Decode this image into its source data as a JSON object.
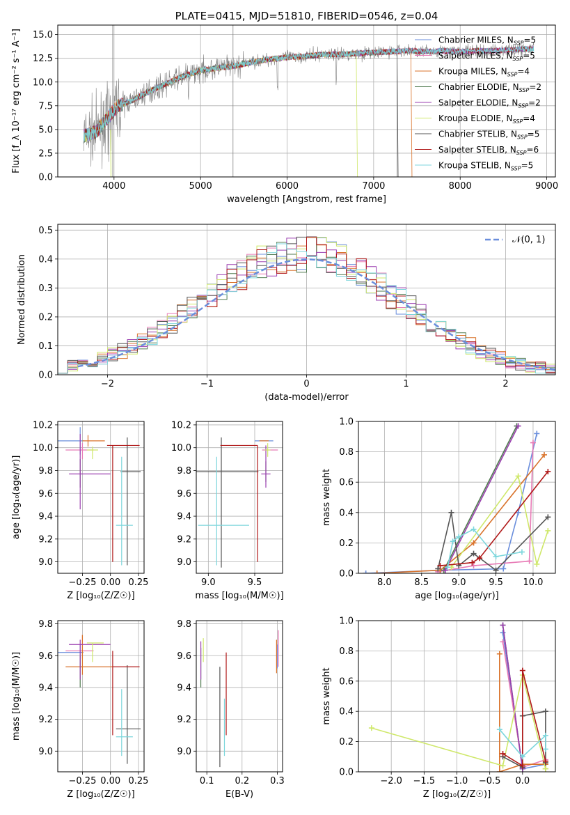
{
  "figure": {
    "title": "PLATE=0415, MJD=51810, FIBERID=0546, z=0.04"
  },
  "colors": {
    "chabrier_miles": "#6a8edc",
    "salpeter_miles": "#e87bb6",
    "kroupa_miles": "#d9732b",
    "chabrier_elodie": "#4f7a4f",
    "salpeter_elodie": "#9b3fb0",
    "kroupa_elodie": "#cfe86a",
    "chabrier_stelib": "#555555",
    "salpeter_stelib": "#b01818",
    "kroupa_stelib": "#7dd6dc",
    "gaussian": "#6a8edc",
    "spectrum_data": "#808080"
  },
  "chart_data": [
    {
      "id": "spectrum",
      "type": "line",
      "title": "PLATE=0415, MJD=51810, FIBERID=0546, z=0.04",
      "xlabel": "wavelength [Angstrom, rest frame]",
      "ylabel": "Flux [f_λ 10⁻¹⁷ erg cm⁻² s⁻¹ A⁻¹]",
      "xlim": [
        3350,
        9100
      ],
      "ylim": [
        0,
        16
      ],
      "xticks": [
        "4000",
        "5000",
        "6000",
        "7000",
        "8000",
        "9000"
      ],
      "yticks": [
        "0.0",
        "2.5",
        "5.0",
        "7.5",
        "10.0",
        "12.5",
        "15.0"
      ],
      "legend_position": "top-right",
      "legend": [
        {
          "text": "Chabrier MILES, N",
          "sub": "SSP",
          "tail": "=5",
          "color": "#6a8edc"
        },
        {
          "text": "Salpeter MILES, N",
          "sub": "SSP",
          "tail": "=5",
          "color": "#e87bb6"
        },
        {
          "text": "Kroupa MILES, N",
          "sub": "SSP",
          "tail": "=4",
          "color": "#d9732b"
        },
        {
          "text": "Chabrier ELODIE, N",
          "sub": "SSP",
          "tail": "=2",
          "color": "#4f7a4f"
        },
        {
          "text": "Salpeter ELODIE, N",
          "sub": "SSP",
          "tail": "=2",
          "color": "#9b3fb0"
        },
        {
          "text": "Kroupa ELODIE, N",
          "sub": "SSP",
          "tail": "=4",
          "color": "#cfe86a"
        },
        {
          "text": "Chabrier STELIB, N",
          "sub": "SSP",
          "tail": "=5",
          "color": "#555555"
        },
        {
          "text": "Salpeter STELIB, N",
          "sub": "SSP",
          "tail": "=6",
          "color": "#b01818"
        },
        {
          "text": "Kroupa STELIB, N",
          "sub": "SSP",
          "tail": "=5",
          "color": "#7dd6dc"
        }
      ],
      "continuum": {
        "x": [
          3650,
          3800,
          3950,
          4050,
          4200,
          4400,
          4600,
          4800,
          5000,
          5200,
          5400,
          5600,
          5800,
          6000,
          6200,
          6400,
          6600,
          6800,
          7000,
          7200,
          7400,
          7600,
          7800,
          8000,
          8200,
          8400,
          8600,
          8850
        ],
        "y": [
          4.3,
          4.8,
          6.5,
          7.5,
          8.0,
          9.0,
          9.8,
          10.6,
          11.2,
          11.5,
          11.7,
          12.1,
          12.4,
          12.6,
          12.7,
          12.9,
          12.9,
          13.0,
          13.1,
          13.2,
          13.3,
          13.2,
          13.3,
          13.2,
          13.3,
          13.3,
          13.4,
          13.5
        ]
      },
      "model_cutoffs": [
        {
          "series": "Kroupa ELODIE",
          "x": 6800,
          "color": "#cfe86a"
        },
        {
          "series": "Chabrier STELIB",
          "x": 7270,
          "color": "#555555"
        },
        {
          "series": "Kroupa MILES",
          "x": 7430,
          "color": "#d9732b"
        }
      ]
    },
    {
      "id": "residuals",
      "type": "bar",
      "xlabel": "(data-model)/error",
      "ylabel": "Normed distribution",
      "xlim": [
        -2.5,
        2.5
      ],
      "ylim": [
        0,
        0.52
      ],
      "xticks": [
        "−2",
        "−1",
        "0",
        "1",
        "2"
      ],
      "yticks": [
        "0.0",
        "0.1",
        "0.2",
        "0.3",
        "0.4",
        "0.5"
      ],
      "legend_position": "top-right",
      "legend": [
        {
          "text": "𝒩(0, 1)",
          "color": "#6a8edc"
        }
      ],
      "bin_width": 0.1,
      "bin_start": -2.5
    },
    {
      "id": "age-vs-Z",
      "type": "scatter",
      "xlabel": "Z [log₁₀(Z/Z☉)]",
      "ylabel": "age  [log₁₀(age/yr)]",
      "xlim": [
        -0.47,
        0.3
      ],
      "ylim": [
        8.9,
        10.23
      ],
      "xticks": [
        "−0.25",
        "0.00",
        "0.25"
      ],
      "yticks": [
        "9.0",
        "9.2",
        "9.4",
        "9.6",
        "9.8",
        "10.0",
        "10.2"
      ],
      "points": [
        {
          "x": -0.27,
          "y": 10.06,
          "xerr": [
            0.2,
            0.03
          ],
          "yerr": [
            0.12,
            0.12
          ],
          "color": "#6a8edc"
        },
        {
          "x": -0.25,
          "y": 9.98,
          "xerr": [
            0.15,
            0.1
          ],
          "yerr": [
            0.08,
            0.06
          ],
          "color": "#e87bb6"
        },
        {
          "x": -0.2,
          "y": 10.06,
          "xerr": [
            0.05,
            0.15
          ],
          "yerr": [
            0.05,
            0.05
          ],
          "color": "#d9732b"
        },
        {
          "x": -0.27,
          "y": 9.8,
          "xerr": [
            0.0,
            0.0
          ],
          "yerr": [
            0.15,
            0.1
          ],
          "color": "#4f7a4f"
        },
        {
          "x": -0.27,
          "y": 9.77,
          "xerr": [
            0.1,
            0.27
          ],
          "yerr": [
            0.31,
            0.35
          ],
          "color": "#9b3fb0"
        },
        {
          "x": -0.16,
          "y": 9.98,
          "xerr": [
            0.05,
            0.05
          ],
          "yerr": [
            0.08,
            0.03
          ],
          "color": "#cfe86a"
        },
        {
          "x": 0.15,
          "y": 9.79,
          "xerr": [
            0.06,
            0.12
          ],
          "yerr": [
            0.82,
            0.3
          ],
          "color": "#555555"
        },
        {
          "x": 0.02,
          "y": 10.02,
          "xerr": [
            0.05,
            0.24
          ],
          "yerr": [
            1.02,
            0.0
          ],
          "color": "#b01818"
        },
        {
          "x": 0.1,
          "y": 9.32,
          "xerr": [
            0.05,
            0.1
          ],
          "yerr": [
            0.35,
            0.6
          ],
          "color": "#7dd6dc"
        }
      ]
    },
    {
      "id": "age-vs-mass",
      "type": "scatter",
      "xlabel": "mass [log₁₀(M/M☉)]",
      "ylabel": "",
      "xlim": [
        8.87,
        9.8
      ],
      "ylim": [
        8.9,
        10.23
      ],
      "xticks": [
        "9.0",
        "9.5"
      ],
      "yticks": [
        "9.0",
        "9.2",
        "9.4",
        "9.6",
        "9.8",
        "10.0",
        "10.2"
      ],
      "points": [
        {
          "x": 9.6,
          "y": 10.06,
          "xerr": [
            0.1,
            0.1
          ],
          "yerr": [
            0.0,
            0.0
          ],
          "color": "#6a8edc"
        },
        {
          "x": 9.63,
          "y": 9.98,
          "xerr": [
            0.05,
            0.12
          ],
          "yerr": [
            0.0,
            0.0
          ],
          "color": "#e87bb6"
        },
        {
          "x": 9.6,
          "y": 10.06,
          "xerr": [
            0.05,
            0.05
          ],
          "yerr": [
            0.0,
            0.0
          ],
          "color": "#d9732b"
        },
        {
          "x": 9.62,
          "y": 9.8,
          "xerr": [
            0.0,
            0.0
          ],
          "yerr": [
            0.1,
            0.08
          ],
          "color": "#4f7a4f"
        },
        {
          "x": 9.62,
          "y": 9.77,
          "xerr": [
            0.05,
            0.05
          ],
          "yerr": [
            0.12,
            0.25
          ],
          "color": "#9b3fb0"
        },
        {
          "x": 9.64,
          "y": 9.98,
          "xerr": [
            0.03,
            0.03
          ],
          "yerr": [
            0.06,
            0.06
          ],
          "color": "#cfe86a"
        },
        {
          "x": 9.14,
          "y": 9.79,
          "xerr": [
            0.27,
            0.4
          ],
          "yerr": [
            0.84,
            0.3
          ],
          "color": "#555555"
        },
        {
          "x": 9.53,
          "y": 10.02,
          "xerr": [
            0.4,
            0.0
          ],
          "yerr": [
            1.02,
            0.0
          ],
          "color": "#b01818"
        },
        {
          "x": 9.09,
          "y": 9.32,
          "xerr": [
            0.2,
            0.35
          ],
          "yerr": [
            0.35,
            0.6
          ],
          "color": "#7dd6dc"
        }
      ]
    },
    {
      "id": "weight-vs-age",
      "type": "line",
      "xlabel": "age  [log₁₀(age/yr)]",
      "ylabel": "mass weight",
      "xlim": [
        7.65,
        10.3
      ],
      "ylim": [
        0,
        1.0
      ],
      "xticks": [
        "8.0",
        "8.5",
        "9.0",
        "9.5",
        "10.0"
      ],
      "yticks": [
        "0.0",
        "0.2",
        "0.4",
        "0.6",
        "0.8",
        "1.0"
      ],
      "series": [
        {
          "name": "Chabrier MILES",
          "color": "#6a8edc",
          "x": [
            7.75,
            8.75,
            9.6,
            9.8,
            10.05
          ],
          "y": [
            0.0,
            0.02,
            0.03,
            0.4,
            0.92
          ]
        },
        {
          "name": "Salpeter MILES",
          "color": "#e87bb6",
          "x": [
            8.72,
            9.2,
            9.95,
            10.0
          ],
          "y": [
            0.01,
            0.05,
            0.08,
            0.86
          ]
        },
        {
          "name": "Kroupa MILES",
          "color": "#d9732b",
          "x": [
            7.9,
            8.75,
            9.2,
            10.15
          ],
          "y": [
            0.0,
            0.02,
            0.2,
            0.78
          ]
        },
        {
          "name": "Chabrier ELODIE",
          "color": "#4f7a4f",
          "x": [
            8.8,
            9.78
          ],
          "y": [
            0.02,
            0.97
          ]
        },
        {
          "name": "Salpeter ELODIE",
          "color": "#9b3fb0",
          "x": [
            8.82,
            9.8
          ],
          "y": [
            0.02,
            0.97
          ]
        },
        {
          "name": "Kroupa ELODIE",
          "color": "#cfe86a",
          "x": [
            8.9,
            9.8,
            10.05,
            10.2
          ],
          "y": [
            0.04,
            0.64,
            0.06,
            0.28
          ]
        },
        {
          "name": "Chabrier STELIB",
          "color": "#555555",
          "x": [
            8.72,
            8.9,
            9.0,
            9.2,
            9.5,
            10.2
          ],
          "y": [
            0.03,
            0.4,
            0.05,
            0.13,
            0.02,
            0.37
          ]
        },
        {
          "name": "Salpeter STELIB",
          "color": "#b01818",
          "x": [
            8.75,
            9.18,
            9.28,
            10.2
          ],
          "y": [
            0.05,
            0.07,
            0.1,
            0.67
          ]
        },
        {
          "name": "Kroupa STELIB",
          "color": "#7dd6dc",
          "x": [
            8.85,
            8.92,
            9.0,
            9.2,
            9.5,
            9.85
          ],
          "y": [
            0.04,
            0.21,
            0.24,
            0.29,
            0.11,
            0.14
          ]
        }
      ]
    },
    {
      "id": "mass-vs-Z",
      "type": "scatter",
      "xlabel": "Z [log₁₀(Z/Z☉)]",
      "ylabel": "mass [log₁₀(M/M☉)]",
      "xlim": [
        -0.47,
        0.3
      ],
      "ylim": [
        8.87,
        9.82
      ],
      "xticks": [
        "−0.25",
        "0.00",
        "0.25"
      ],
      "yticks": [
        "9.0",
        "9.2",
        "9.4",
        "9.6",
        "9.8"
      ],
      "points": [
        {
          "x": -0.27,
          "y": 9.62,
          "xerr": [
            0.2,
            0.03
          ],
          "yerr": [
            0.1,
            0.05
          ],
          "color": "#6a8edc"
        },
        {
          "x": -0.25,
          "y": 9.63,
          "xerr": [
            0.15,
            0.1
          ],
          "yerr": [
            0.05,
            0.1
          ],
          "color": "#e87bb6"
        },
        {
          "x": -0.25,
          "y": 9.53,
          "xerr": [
            0.15,
            0.27
          ],
          "yerr": [
            0.05,
            0.2
          ],
          "color": "#d9732b"
        },
        {
          "x": -0.27,
          "y": 9.55,
          "xerr": [
            0.0,
            0.0
          ],
          "yerr": [
            0.15,
            0.05
          ],
          "color": "#4f7a4f"
        },
        {
          "x": -0.27,
          "y": 9.67,
          "xerr": [
            0.1,
            0.27
          ],
          "yerr": [
            0.22,
            0.03
          ],
          "color": "#9b3fb0"
        },
        {
          "x": -0.16,
          "y": 9.68,
          "xerr": [
            0.05,
            0.1
          ],
          "yerr": [
            0.12,
            0.0
          ],
          "color": "#cfe86a"
        },
        {
          "x": 0.15,
          "y": 9.14,
          "xerr": [
            0.1,
            0.12
          ],
          "yerr": [
            0.22,
            0.4
          ],
          "color": "#555555"
        },
        {
          "x": 0.02,
          "y": 9.53,
          "xerr": [
            0.0,
            0.24
          ],
          "yerr": [
            0.43,
            0.1
          ],
          "color": "#b01818"
        },
        {
          "x": 0.1,
          "y": 9.09,
          "xerr": [
            0.05,
            0.1
          ],
          "yerr": [
            0.12,
            0.3
          ],
          "color": "#7dd6dc"
        }
      ]
    },
    {
      "id": "mass-vs-EBV",
      "type": "scatter",
      "xlabel": "E(B-V)",
      "ylabel": "",
      "xlim": [
        0.07,
        0.315
      ],
      "ylim": [
        8.87,
        9.82
      ],
      "xticks": [
        "0.1",
        "0.2",
        "0.3"
      ],
      "yticks": [
        "9.0",
        "9.2",
        "9.4",
        "9.6",
        "9.8"
      ],
      "points": [
        {
          "x": 0.3,
          "y": 9.62,
          "yerr": [
            0.1,
            0.05
          ],
          "color": "#6a8edc"
        },
        {
          "x": 0.303,
          "y": 9.63,
          "yerr": [
            0.1,
            0.13
          ],
          "color": "#e87bb6"
        },
        {
          "x": 0.298,
          "y": 9.55,
          "yerr": [
            0.06,
            0.15
          ],
          "color": "#d9732b"
        },
        {
          "x": 0.083,
          "y": 9.55,
          "yerr": [
            0.15,
            0.1
          ],
          "color": "#4f7a4f"
        },
        {
          "x": 0.083,
          "y": 9.57,
          "yerr": [
            0.12,
            0.12
          ],
          "color": "#9b3fb0"
        },
        {
          "x": 0.09,
          "y": 9.63,
          "yerr": [
            0.07,
            0.08
          ],
          "color": "#cfe86a"
        },
        {
          "x": 0.137,
          "y": 9.2,
          "yerr": [
            0.3,
            0.33
          ],
          "color": "#555555"
        },
        {
          "x": 0.155,
          "y": 9.35,
          "yerr": [
            0.25,
            0.27
          ],
          "color": "#b01818"
        },
        {
          "x": 0.15,
          "y": 9.2,
          "yerr": [
            0.23,
            0.13
          ],
          "color": "#7dd6dc"
        }
      ]
    },
    {
      "id": "weight-vs-Z",
      "type": "line",
      "xlabel": "Z [log₁₀(Z/Z☉)]",
      "ylabel": "mass weight",
      "xlim": [
        -2.5,
        0.5
      ],
      "ylim": [
        0,
        1.0
      ],
      "xticks": [
        "−2.0",
        "−1.5",
        "−1.0",
        "−0.5",
        "0.0"
      ],
      "yticks": [
        "0.0",
        "0.2",
        "0.4",
        "0.6",
        "0.8",
        "1.0"
      ],
      "series": [
        {
          "name": "Chabrier MILES",
          "color": "#6a8edc",
          "x": [
            -0.3,
            0.0,
            0.35
          ],
          "y": [
            0.92,
            0.02,
            0.05
          ]
        },
        {
          "name": "Salpeter MILES",
          "color": "#e87bb6",
          "x": [
            -0.3,
            0.0,
            0.35
          ],
          "y": [
            0.86,
            0.03,
            0.08
          ]
        },
        {
          "name": "Kroupa MILES",
          "color": "#d9732b",
          "x": [
            -0.35,
            -0.35,
            0.0,
            0.35,
            0.35
          ],
          "y": [
            0.78,
            0.0,
            0.05,
            0.05,
            0.02
          ]
        },
        {
          "name": "Chabrier ELODIE",
          "color": "#4f7a4f",
          "x": [
            -0.3,
            0.0
          ],
          "y": [
            0.97,
            0.02
          ]
        },
        {
          "name": "Salpeter ELODIE",
          "color": "#9b3fb0",
          "x": [
            -0.3,
            0.0
          ],
          "y": [
            0.97,
            0.02
          ]
        },
        {
          "name": "Kroupa ELODIE",
          "color": "#cfe86a",
          "x": [
            -2.3,
            -0.3,
            0.0,
            0.35
          ],
          "y": [
            0.29,
            0.04,
            0.64,
            0.02
          ]
        },
        {
          "name": "Chabrier STELIB",
          "color": "#555555",
          "x": [
            -0.3,
            0.0,
            0.0,
            0.35,
            0.35
          ],
          "y": [
            0.1,
            0.03,
            0.37,
            0.4,
            0.06
          ]
        },
        {
          "name": "Salpeter STELIB",
          "color": "#b01818",
          "x": [
            -0.3,
            0.0,
            0.0,
            0.35
          ],
          "y": [
            0.12,
            0.04,
            0.67,
            0.07
          ]
        },
        {
          "name": "Kroupa STELIB",
          "color": "#7dd6dc",
          "x": [
            -0.35,
            0.0,
            0.35,
            0.35
          ],
          "y": [
            0.28,
            0.1,
            0.24,
            0.15
          ]
        }
      ]
    }
  ]
}
